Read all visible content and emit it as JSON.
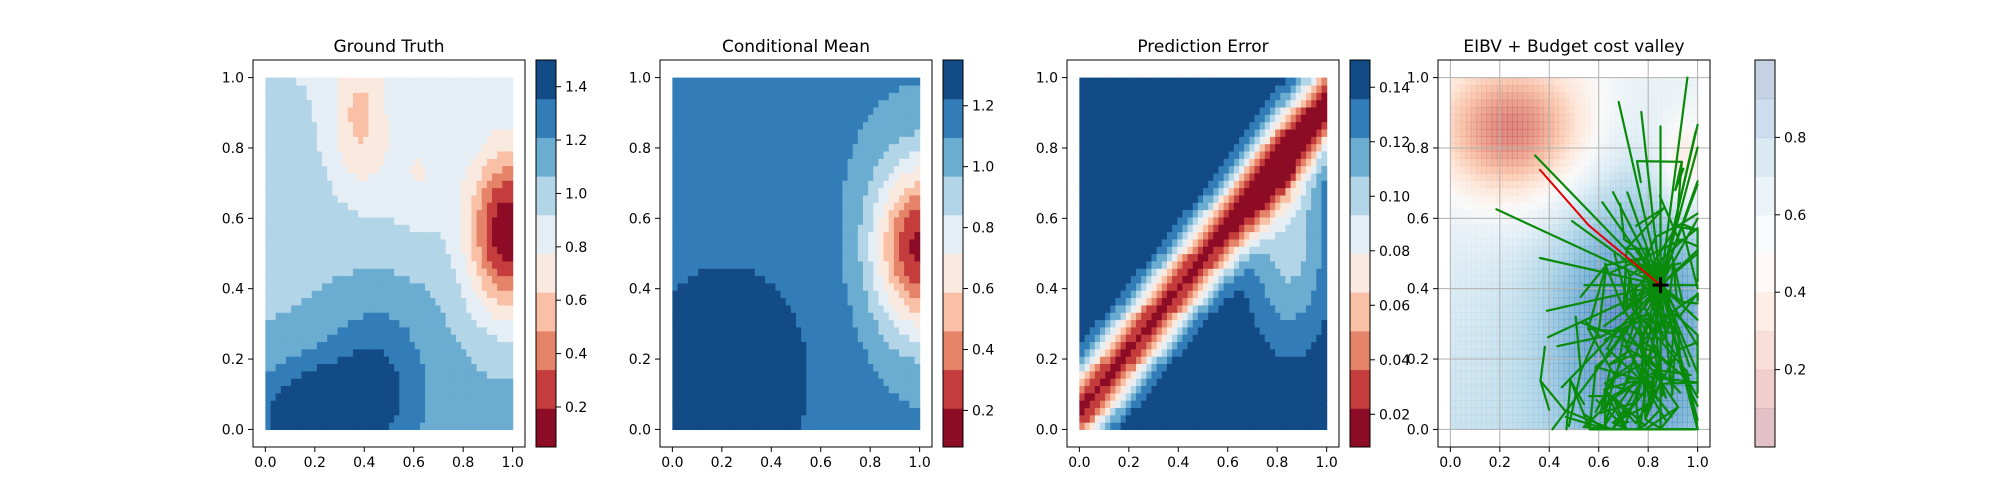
{
  "chart_data": [
    {
      "type": "heatmap",
      "title": "Ground Truth",
      "xlabel": "",
      "ylabel": "",
      "xlim": [
        -0.05,
        1.05
      ],
      "ylim": [
        -0.05,
        1.05
      ],
      "xticks": [
        "0.0",
        "0.2",
        "0.4",
        "0.6",
        "0.8",
        "1.0"
      ],
      "yticks": [
        "0.0",
        "0.2",
        "0.4",
        "0.6",
        "0.8",
        "1.0"
      ],
      "grid": false,
      "colormap": "RdBu",
      "colorbar": {
        "min": 0.05,
        "max": 1.5,
        "ticks": [
          "0.2",
          "0.4",
          "0.6",
          "0.8",
          "1.0",
          "1.2",
          "1.4"
        ]
      }
    },
    {
      "type": "heatmap",
      "title": "Conditional Mean",
      "xlabel": "",
      "ylabel": "",
      "xlim": [
        -0.05,
        1.05
      ],
      "ylim": [
        -0.05,
        1.05
      ],
      "xticks": [
        "0.0",
        "0.2",
        "0.4",
        "0.6",
        "0.8",
        "1.0"
      ],
      "yticks": [
        "0.0",
        "0.2",
        "0.4",
        "0.6",
        "0.8",
        "1.0"
      ],
      "grid": false,
      "colormap": "RdBu",
      "colorbar": {
        "min": 0.08,
        "max": 1.35,
        "ticks": [
          "0.2",
          "0.4",
          "0.6",
          "0.8",
          "1.0",
          "1.2"
        ]
      }
    },
    {
      "type": "heatmap",
      "title": "Prediction Error",
      "xlabel": "",
      "ylabel": "",
      "xlim": [
        -0.05,
        1.05
      ],
      "ylim": [
        -0.05,
        1.05
      ],
      "xticks": [
        "0.0",
        "0.2",
        "0.4",
        "0.6",
        "0.8",
        "1.0"
      ],
      "yticks": [
        "0.0",
        "0.2",
        "0.4",
        "0.6",
        "0.8",
        "1.0"
      ],
      "grid": false,
      "colormap": "RdBu",
      "colorbar": {
        "min": 0.008,
        "max": 0.15,
        "ticks": [
          "0.02",
          "0.04",
          "0.06",
          "0.08",
          "0.10",
          "0.12",
          "0.14"
        ]
      }
    },
    {
      "type": "heatmap",
      "title": "EIBV + Budget cost valley",
      "xlabel": "",
      "ylabel": "",
      "xlim": [
        -0.05,
        1.05
      ],
      "ylim": [
        -0.05,
        1.05
      ],
      "xticks": [
        "0.0",
        "0.2",
        "0.4",
        "0.6",
        "0.8",
        "1.0"
      ],
      "yticks": [
        "0.0",
        "0.2",
        "0.4",
        "0.6",
        "0.8",
        "1.0"
      ],
      "grid": true,
      "colormap": "RdBu (transparent)",
      "colorbar": {
        "min": 0.0,
        "max": 1.0,
        "ticks": [
          "0.2",
          "0.4",
          "0.6",
          "0.8"
        ]
      },
      "current_location": {
        "x": 0.85,
        "y": 0.41
      },
      "colors": {
        "tree": "#0a8a0a",
        "path": "#e00000",
        "marker": "#000000"
      }
    }
  ]
}
